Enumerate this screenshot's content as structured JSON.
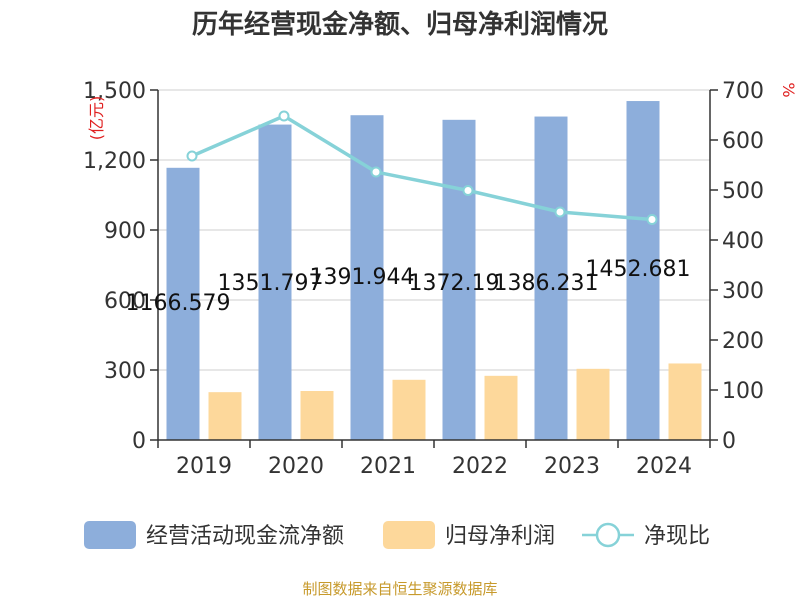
{
  "chart_data": {
    "type": "bar",
    "title": "历年经营现金净额、归母净利润情况",
    "categories": [
      "2019",
      "2020",
      "2021",
      "2022",
      "2023",
      "2024"
    ],
    "series": [
      {
        "name": "经营活动现金流净额",
        "axis": "left",
        "type": "bar",
        "color": "#8daedb",
        "values": [
          1166.579,
          1351.797,
          1391.944,
          1372.19,
          1386.231,
          1452.681
        ],
        "labels": [
          "1166.579",
          "1351.797",
          "1391.944",
          "1372.19",
          "1386.231",
          "1452.681"
        ]
      },
      {
        "name": "归母净利润",
        "axis": "left",
        "type": "bar",
        "color": "#fdd89b",
        "values": [
          205,
          210,
          258,
          275,
          305,
          328
        ]
      },
      {
        "name": "净现比",
        "axis": "right",
        "type": "line",
        "color": "#86d2d8",
        "values": [
          568,
          648,
          536,
          499,
          456,
          441
        ]
      }
    ],
    "y_left": {
      "label": "亿元",
      "min": 0,
      "max": 1500,
      "ticks": [
        0,
        300,
        600,
        900,
        1200,
        1500
      ],
      "tick_labels": [
        "0",
        "300",
        "600",
        "900",
        "1,200",
        "1,500"
      ]
    },
    "y_right": {
      "label": "%",
      "min": 0,
      "max": 700,
      "ticks": [
        0,
        100,
        200,
        300,
        400,
        500,
        600,
        700
      ],
      "tick_labels": [
        "0",
        "100",
        "200",
        "300",
        "400",
        "500",
        "600",
        "700"
      ]
    },
    "grid": true,
    "legend_position": "bottom"
  },
  "source": "制图数据来自恒生聚源数据库"
}
